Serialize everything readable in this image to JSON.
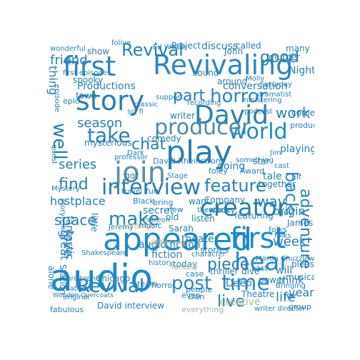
{
  "words": [
    {
      "text": "first",
      "color": "#2e86c1"
    },
    {
      "text": "Revivaling",
      "color": "#2e86c1"
    },
    {
      "text": "audio",
      "color": "#1f8ac8"
    },
    {
      "text": "appeared",
      "color": "#1f8ac8"
    },
    {
      "text": "first",
      "color": "#1f8ac8"
    },
    {
      "text": "story",
      "color": "#2a7fb0"
    },
    {
      "text": "David",
      "color": "#2a7fb0"
    },
    {
      "text": "play",
      "color": "#2a7fb0"
    },
    {
      "text": "join",
      "color": "#5b8fa8"
    },
    {
      "text": "world",
      "color": "#1f8ac8"
    },
    {
      "text": "producer",
      "color": "#4d8aa6"
    },
    {
      "text": "creator",
      "color": "#2a7fb0"
    },
    {
      "text": "interview",
      "color": "#2a7fb0"
    },
    {
      "text": "Revival",
      "color": "#2a7fb0"
    },
    {
      "text": "post",
      "color": "#2e86c1"
    },
    {
      "text": "time",
      "color": "#2e86c1"
    },
    {
      "text": "hear",
      "color": "#1f8ac8"
    },
    {
      "text": "take",
      "color": "#2a7fb0"
    },
    {
      "text": "horror",
      "color": "#2e86c1"
    },
    {
      "text": "feature",
      "color": "#2a7fb0"
    },
    {
      "text": "make",
      "color": "#2a7fb0"
    },
    {
      "text": "piece",
      "color": "#2a7fb0"
    },
    {
      "text": "live",
      "color": "#2a7fb0"
    },
    {
      "text": "adventure",
      "color": "#2a7fb0"
    },
    {
      "text": "back",
      "color": "#2e86c1"
    },
    {
      "text": "well",
      "color": "#2a7fb0"
    },
    {
      "text": "thing",
      "color": "#2a7fb0"
    },
    {
      "text": "friend",
      "color": "#2a7fb0"
    },
    {
      "text": "Revival",
      "color": "#2a7fb0"
    },
    {
      "text": "good",
      "color": "#2a7fb0"
    },
    {
      "text": "series",
      "color": "#2a7fb0"
    },
    {
      "text": "find",
      "color": "#2a7fb0"
    },
    {
      "text": "space",
      "color": "#2a7fb0"
    },
    {
      "text": "love",
      "color": "#2a7fb0"
    },
    {
      "text": "season",
      "color": "#2a7fb0"
    },
    {
      "text": "part",
      "color": "#2a7fb0"
    },
    {
      "text": "chat",
      "color": "#2a7fb0"
    },
    {
      "text": "work",
      "color": "#2a7fb0"
    },
    {
      "text": "week",
      "color": "#2a7fb0"
    },
    {
      "text": "way",
      "color": "#2a7fb0"
    },
    {
      "text": "life",
      "color": "#2a7fb0"
    },
    {
      "text": "year",
      "color": "#2a7fb0"
    },
    {
      "text": "origin",
      "color": "#2a7fb0"
    },
    {
      "text": "great",
      "color": "#2a7fb0"
    },
    {
      "text": "conversation",
      "color": "#2a7fb0"
    },
    {
      "text": "Productions",
      "color": "#2a7fb0"
    },
    {
      "text": "David Rheinstrom",
      "color": "#2a7fb0"
    },
    {
      "text": "hostplace",
      "color": "#2a7fb0"
    },
    {
      "text": "audio fiction",
      "color": "#2a7fb0"
    },
    {
      "text": "fiction",
      "color": "#2a7fb0"
    },
    {
      "text": "theater",
      "color": "#2a7fb0"
    },
    {
      "text": "today",
      "color": "#2a7fb0"
    },
    {
      "text": "Revival",
      "color": "#2e86c1"
    },
    {
      "text": "David interview",
      "color": "#2a7fb0"
    },
    {
      "text": "creative",
      "color": "#a8b89a"
    },
    {
      "text": "everything",
      "color": "#a8b89a"
    },
    {
      "text": "fabulous",
      "color": "#2a7fb0"
    },
    {
      "text": "fantastic",
      "color": "#2a7fb0"
    },
    {
      "text": "secret",
      "color": "#2a7fb0"
    },
    {
      "text": "listen",
      "color": "#2a7fb0"
    },
    {
      "text": "going",
      "color": "#2a7fb0"
    },
    {
      "text": "tale",
      "color": "#2a7fb0"
    },
    {
      "text": "together",
      "color": "#2a7fb0"
    },
    {
      "text": "playing",
      "color": "#2a7fb0"
    },
    {
      "text": "mysterious",
      "color": "#2a7fb0"
    },
    {
      "text": "spooky",
      "color": "#2a7fb0"
    },
    {
      "text": "town",
      "color": "#2a7fb0"
    },
    {
      "text": "writer",
      "color": "#2a7fb0"
    },
    {
      "text": "comedy",
      "color": "#2a7fb0"
    },
    {
      "text": "Sarah",
      "color": "#2a7fb0"
    },
    {
      "text": "stories",
      "color": "#2a7fb0"
    },
    {
      "text": "Chicago",
      "color": "#2a7fb0"
    },
    {
      "text": "Deep",
      "color": "#2a7fb0"
    },
    {
      "text": "Theatre",
      "color": "#2a7fb0"
    },
    {
      "text": "think",
      "color": "#2a7fb0"
    },
    {
      "text": "will",
      "color": "#2a7fb0"
    },
    {
      "text": "sound",
      "color": "#2a7fb0"
    },
    {
      "text": "discuss",
      "color": "#2a7fb0"
    },
    {
      "text": "show",
      "color": "#2a7fb0"
    },
    {
      "text": "John",
      "color": "#2a7fb0"
    },
    {
      "text": "called",
      "color": "#2a7fb0"
    },
    {
      "text": "Project",
      "color": "#2a7fb0"
    },
    {
      "text": "around",
      "color": "#2a7fb0"
    },
    {
      "text": "Night",
      "color": "#2a7fb0"
    },
    {
      "text": "James",
      "color": "#2a7fb0"
    },
    {
      "text": "thriller",
      "color": "#2a7fb0"
    },
    {
      "text": "dive",
      "color": "#2a7fb0"
    },
    {
      "text": "power",
      "color": "#2a7fb0"
    },
    {
      "text": "musical",
      "color": "#2a7fb0"
    },
    {
      "text": "pleasure",
      "color": "#2a7fb0"
    },
    {
      "text": "Martin Chuzzlewit",
      "color": "#2a7fb0"
    },
    {
      "text": "Station",
      "color": "#2a7fb0"
    },
    {
      "text": "alone",
      "color": "#2a7fb0"
    },
    {
      "text": "Company",
      "color": "#2a7fb0"
    },
    {
      "text": "Stage",
      "color": "#2a7fb0"
    },
    {
      "text": "Award",
      "color": "#2a7fb0"
    },
    {
      "text": "star",
      "color": "#2a7fb0"
    },
    {
      "text": "featuring",
      "color": "#2a7fb0"
    },
    {
      "text": "want",
      "color": "#2a7fb0"
    },
    {
      "text": "wacky",
      "color": "#2a7fb0"
    },
    {
      "text": "got",
      "color": "#2a7fb0"
    },
    {
      "text": "old",
      "color": "#2a7fb0"
    },
    {
      "text": "little",
      "color": "#2a7fb0"
    },
    {
      "text": "storytelling",
      "color": "#2a7fb0"
    },
    {
      "text": "fantasy",
      "color": "#a8b89a"
    },
    {
      "text": "different",
      "color": "#c8c8a0"
    },
    {
      "text": "strange",
      "color": "#c8c8a0"
    },
    {
      "text": "history",
      "color": "#2a7fb0"
    },
    {
      "text": "case",
      "color": "#2a7fb0"
    },
    {
      "text": "character",
      "color": "#2a7fb0"
    },
    {
      "text": "explore",
      "color": "#2a7fb0"
    },
    {
      "text": "Last",
      "color": "#2a7fb0"
    },
    {
      "text": "writer director",
      "color": "#2a7fb0"
    },
    {
      "text": "murder",
      "color": "#2a7fb0"
    },
    {
      "text": "produced",
      "color": "#2a7fb0"
    },
    {
      "text": "come",
      "color": "#2a7fb0"
    },
    {
      "text": "something",
      "color": "#2a7fb0"
    },
    {
      "text": "professor",
      "color": "#2a7fb0"
    },
    {
      "text": "fun",
      "color": "#2a7fb0"
    },
    {
      "text": "original",
      "color": "#2a7fb0"
    },
    {
      "text": "episode",
      "color": "#2a7fb0"
    },
    {
      "text": "bring",
      "color": "#2a7fb0"
    },
    {
      "text": "Black",
      "color": "#2a7fb0"
    },
    {
      "text": "many",
      "color": "#2a7fb0"
    },
    {
      "text": "Joe",
      "color": "#2a7fb0"
    },
    {
      "text": "Dan",
      "color": "#2a7fb0"
    },
    {
      "text": "Elf",
      "color": "#2a7fb0"
    },
    {
      "text": "guy",
      "color": "#2a7fb0"
    },
    {
      "text": "folks",
      "color": "#2a7fb0"
    },
    {
      "text": "music",
      "color": "#2a7fb0"
    },
    {
      "text": "team",
      "color": "#2a7fb0"
    },
    {
      "text": "horror",
      "color": "#2a7fb0"
    },
    {
      "text": "people",
      "color": "#2a7fb0"
    },
    {
      "text": "even",
      "color": "#2a7fb0"
    },
    {
      "text": "group",
      "color": "#2a7fb0"
    },
    {
      "text": "created",
      "color": "#2a7fb0"
    },
    {
      "text": "new",
      "color": "#2a7fb0"
    },
    {
      "text": "Dark",
      "color": "#2a7fb0"
    },
    {
      "text": "Jim",
      "color": "#2a7fb0"
    },
    {
      "text": "foley",
      "color": "#2a7fb0"
    },
    {
      "text": "folks",
      "color": "#2a7fb0"
    },
    {
      "text": "support",
      "color": "#2a7fb0"
    },
    {
      "text": "classic",
      "color": "#2a7fb0"
    },
    {
      "text": "recording",
      "color": "#2a7fb0"
    },
    {
      "text": "sci fi",
      "color": "#2a7fb0"
    },
    {
      "text": "Saturday",
      "color": "#2a7fb0"
    },
    {
      "text": "Bringing",
      "color": "#2a7fb0"
    },
    {
      "text": "epic",
      "color": "#2a7fb0"
    },
    {
      "text": "wonderful",
      "color": "#2a7fb0"
    },
    {
      "text": "Wooden Overcoats",
      "color": "#2a7fb0"
    },
    {
      "text": "quest",
      "color": "#2a7fb0"
    },
    {
      "text": "Jeremy",
      "color": "#2a7fb0"
    },
    {
      "text": "Molly",
      "color": "#2a7fb0"
    },
    {
      "text": "travel",
      "color": "#2a7fb0"
    },
    {
      "text": "dramatist",
      "color": "#2a7fb0"
    },
    {
      "text": "ministering",
      "color": "#2a7fb0"
    },
    {
      "text": "first episodes",
      "color": "#2a7fb0"
    },
    {
      "text": "Christopher",
      "color": "#2a7fb0"
    },
    {
      "text": "Patreon",
      "color": "#2a7fb0"
    },
    {
      "text": "Mystery",
      "color": "#2a7fb0"
    },
    {
      "text": "Shakespeare",
      "color": "#2a7fb0"
    },
    {
      "text": "Ed Willan",
      "color": "#2a7fb0"
    },
    {
      "text": "podcast",
      "color": "#2a7fb0"
    },
    {
      "text": "folive",
      "color": "#2a7fb0"
    },
    {
      "text": "cast",
      "color": "#2a7fb0"
    },
    {
      "text": "theater",
      "color": "#2a7fb0"
    }
  ]
}
